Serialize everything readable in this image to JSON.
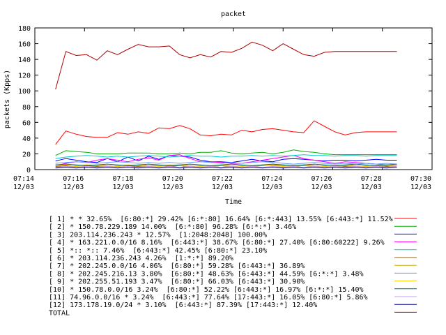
{
  "chart_data": {
    "type": "line",
    "title": "packet",
    "xlabel": "Time",
    "ylabel": "packets (Kpps)",
    "ylim": [
      0,
      180
    ],
    "yticks": [
      0,
      20,
      40,
      60,
      80,
      100,
      120,
      140,
      160,
      180
    ],
    "xlim": [
      "07:14",
      "07:30"
    ],
    "xticks": [
      {
        "time": "07:14",
        "date": "12/03"
      },
      {
        "time": "07:16",
        "date": "12/03"
      },
      {
        "time": "07:18",
        "date": "12/03"
      },
      {
        "time": "07:20",
        "date": "12/03"
      },
      {
        "time": "07:22",
        "date": "12/03"
      },
      {
        "time": "07:24",
        "date": "12/03"
      },
      {
        "time": "07:26",
        "date": "12/03"
      },
      {
        "time": "07:28",
        "date": "12/03"
      },
      {
        "time": "07:30",
        "date": "12/03"
      }
    ],
    "grid": false,
    "legend_placement": "below",
    "x": [
      "07:14:50",
      "07:15:15",
      "07:15:40",
      "07:16:05",
      "07:16:30",
      "07:16:55",
      "07:17:20",
      "07:17:45",
      "07:18:10",
      "07:18:35",
      "07:19:00",
      "07:19:25",
      "07:19:50",
      "07:20:15",
      "07:20:40",
      "07:21:05",
      "07:21:30",
      "07:21:55",
      "07:22:20",
      "07:22:45",
      "07:23:10",
      "07:23:35",
      "07:24:00",
      "07:24:25",
      "07:24:50",
      "07:25:15",
      "07:25:40",
      "07:26:05",
      "07:26:30",
      "07:26:55",
      "07:27:20",
      "07:27:45",
      "07:28:10",
      "07:28:35"
    ],
    "series": [
      {
        "name": "[ 1] * * 32.65%  [6:80:*] 29.42% [6:*:80] 16.64% [6:*:443] 13.55% [6:443:*] 11.52%",
        "color": "#ff0000",
        "values": [
          32,
          49,
          45,
          42,
          41,
          41,
          47,
          45,
          48,
          46,
          53,
          52,
          56,
          52,
          44,
          43,
          45,
          44,
          50,
          48,
          51,
          52,
          50,
          48,
          47,
          62,
          55,
          48,
          44,
          47,
          48,
          48,
          48,
          48
        ]
      },
      {
        "name": "[ 2] * 150.78.229.189 14.00%  [6:*:80] 96.28% [6:*:*] 3.46%",
        "color": "#00b000",
        "values": [
          18,
          24,
          23,
          22,
          20,
          20,
          20,
          21,
          21,
          21,
          20,
          20,
          21,
          20,
          22,
          22,
          24,
          21,
          20,
          21,
          22,
          20,
          22,
          25,
          23,
          22,
          20,
          19,
          19,
          19,
          19,
          19,
          19,
          19
        ]
      },
      {
        "name": "[ 3] 203.114.236.243 * 12.57%  [1:2048:2048] 100.00%",
        "color": "#0000ff",
        "values": [
          11,
          14,
          12,
          10,
          9,
          14,
          10,
          16,
          11,
          17,
          13,
          18,
          17,
          16,
          12,
          10,
          10,
          9,
          11,
          13,
          11,
          10,
          13,
          14,
          13,
          12,
          11,
          12,
          12,
          11,
          12,
          13,
          12,
          12
        ]
      },
      {
        "name": "[ 4] * 163.221.0.0/16 8.16%  [6:443:*] 38.67% [6:80:*] 27.40% [6:80:60222] 9.26%",
        "color": "#ff00ff",
        "values": [
          5,
          8,
          10,
          9,
          12,
          14,
          12,
          10,
          13,
          15,
          12,
          18,
          19,
          14,
          10,
          10,
          9,
          8,
          8,
          10,
          12,
          14,
          16,
          18,
          14,
          12,
          10,
          8,
          10,
          9,
          8,
          7,
          6,
          5
        ]
      },
      {
        "name": "[ 5] *:: *:: 7.46%  [6:443:*] 42.45% [6:80:*] 23.10%",
        "color": "#00cccc",
        "values": [
          14,
          16,
          17,
          18,
          17,
          16,
          17,
          16,
          17,
          18,
          17,
          16,
          17,
          18,
          17,
          17,
          16,
          17,
          17,
          18,
          17,
          18,
          17,
          18,
          19,
          18,
          18,
          17,
          18,
          18,
          17,
          18,
          18,
          18
        ]
      },
      {
        "name": "[ 6] * 203.114.236.243 4.26%  [1:*:*] 89.20%",
        "color": "#996600",
        "values": [
          4,
          5,
          4,
          5,
          4,
          5,
          4,
          5,
          4,
          5,
          5,
          4,
          5,
          4,
          5,
          4,
          5,
          4,
          5,
          4,
          6,
          5,
          6,
          5,
          6,
          5,
          4,
          5,
          4,
          5,
          4,
          5,
          4,
          5
        ]
      },
      {
        "name": "[ 7] * 202.245.0.0/16 4.06%  [6:80:*] 59.28% [6:443:*] 36.89%",
        "color": "#ccaa00",
        "values": [
          3,
          4,
          5,
          6,
          5,
          4,
          5,
          6,
          5,
          4,
          5,
          6,
          5,
          4,
          5,
          4,
          5,
          4,
          5,
          4,
          5,
          6,
          5,
          4,
          5,
          4,
          5,
          4,
          5,
          4,
          5,
          4,
          5,
          4
        ]
      },
      {
        "name": "[ 8] * 202.245.216.13 3.80%  [6:80:*] 48.63% [6:443:*] 44.59% [6:*:*] 3.48%",
        "color": "#6699ff",
        "values": [
          8,
          9,
          10,
          9,
          8,
          9,
          10,
          9,
          8,
          9,
          8,
          9,
          8,
          9,
          10,
          9,
          8,
          9,
          8,
          9,
          10,
          9,
          8,
          7,
          8,
          9,
          8,
          7,
          8,
          7,
          8,
          7,
          8,
          7
        ]
      },
      {
        "name": "[ 9] * 202.255.51.193 3.47%  [6:80:*] 66.03% [6:443:*] 30.90%",
        "color": "#ffcc00",
        "values": [
          5,
          6,
          4,
          5,
          6,
          5,
          4,
          5,
          6,
          5,
          4,
          5,
          6,
          5,
          4,
          5,
          6,
          5,
          4,
          5,
          6,
          5,
          4,
          5,
          6,
          5,
          4,
          5,
          6,
          5,
          4,
          5,
          6,
          5
        ]
      },
      {
        "name": "[10] * 150.78.0.0/16 3.24%  [6:80:*] 52.22% [6:443:*] 16.97% [6:*:*] 15.40%",
        "color": "#006666",
        "values": [
          6,
          7,
          6,
          5,
          6,
          7,
          6,
          5,
          6,
          7,
          6,
          5,
          6,
          7,
          6,
          5,
          6,
          7,
          6,
          5,
          6,
          7,
          6,
          5,
          6,
          7,
          6,
          5,
          6,
          7,
          6,
          5,
          6,
          7
        ]
      },
      {
        "name": "[11] 74.96.0.0/16 * 3.24%  [6:443:*] 77.64% [17:443:*] 16.05% [6:80:*] 5.86%",
        "color": "#cc99ff",
        "values": [
          3,
          4,
          3,
          4,
          3,
          4,
          3,
          4,
          3,
          4,
          3,
          4,
          3,
          4,
          3,
          4,
          3,
          4,
          3,
          4,
          3,
          4,
          3,
          4,
          3,
          4,
          3,
          4,
          3,
          4,
          3,
          4,
          3,
          4
        ]
      },
      {
        "name": "[12] 173.178.19.0/24 * 3.10%  [6:443:*] 87.39% [17:443:*] 12.40%",
        "color": "#000088",
        "values": [
          2,
          3,
          2,
          3,
          2,
          3,
          2,
          3,
          2,
          3,
          2,
          3,
          2,
          3,
          2,
          3,
          2,
          3,
          2,
          3,
          2,
          3,
          2,
          3,
          2,
          3,
          2,
          3,
          2,
          3,
          2,
          3,
          2,
          3
        ]
      },
      {
        "name": "TOTAL",
        "color": "#aa0000",
        "values": [
          102,
          150,
          145,
          146,
          139,
          151,
          146,
          153,
          159,
          156,
          156,
          157,
          146,
          142,
          146,
          143,
          150,
          149,
          154,
          162,
          158,
          151,
          160,
          153,
          146,
          144,
          149,
          150,
          150,
          150,
          150,
          150,
          150,
          150
        ]
      }
    ]
  }
}
